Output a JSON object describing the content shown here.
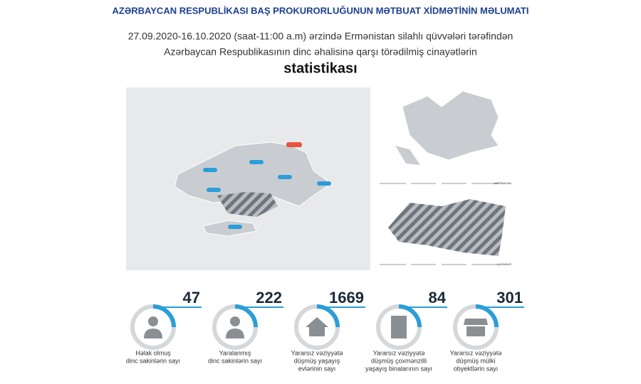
{
  "header": {
    "title": "AZƏRBAYCAN RESPUBLİKASI BAŞ PROKURORLUĞUNUN MƏTBUAT XİDMƏTİNİN MƏLUMATI",
    "subtitle": [
      "27.09.2020-16.10.2020 (saat-11:00 a.m) ərzində Ermənistan silahlı qüvvələri tərəfindən",
      "Azərbaycan Respublikasının dinc əhalisinə qarşı törədilmiş cinayətlərin"
    ],
    "heading": "statistikası"
  },
  "maps": {
    "labels": [
      "AZERBAIJAN",
      "QARABAĞ"
    ]
  },
  "stats": [
    {
      "number": "47",
      "label": [
        "Həlak olmuş",
        "dinc sakinlərin sayı"
      ]
    },
    {
      "number": "222",
      "label": [
        "Yaralanmış",
        "dinc sakinlərin sayı"
      ]
    },
    {
      "number": "1669",
      "label": [
        "Yararsız vəziyyətə",
        "düşmüş yaşayış",
        "evlərinin sayı"
      ]
    },
    {
      "number": "84",
      "label": [
        "Yararsız vəziyyətə",
        "düşmüş çoxmənzilli",
        "yaşayış binalarının sayı"
      ]
    },
    {
      "number": "301",
      "label": [
        "Yararsız vəziyyətə",
        "düşmüş mülki",
        "obyektlərin sayı"
      ]
    }
  ]
}
